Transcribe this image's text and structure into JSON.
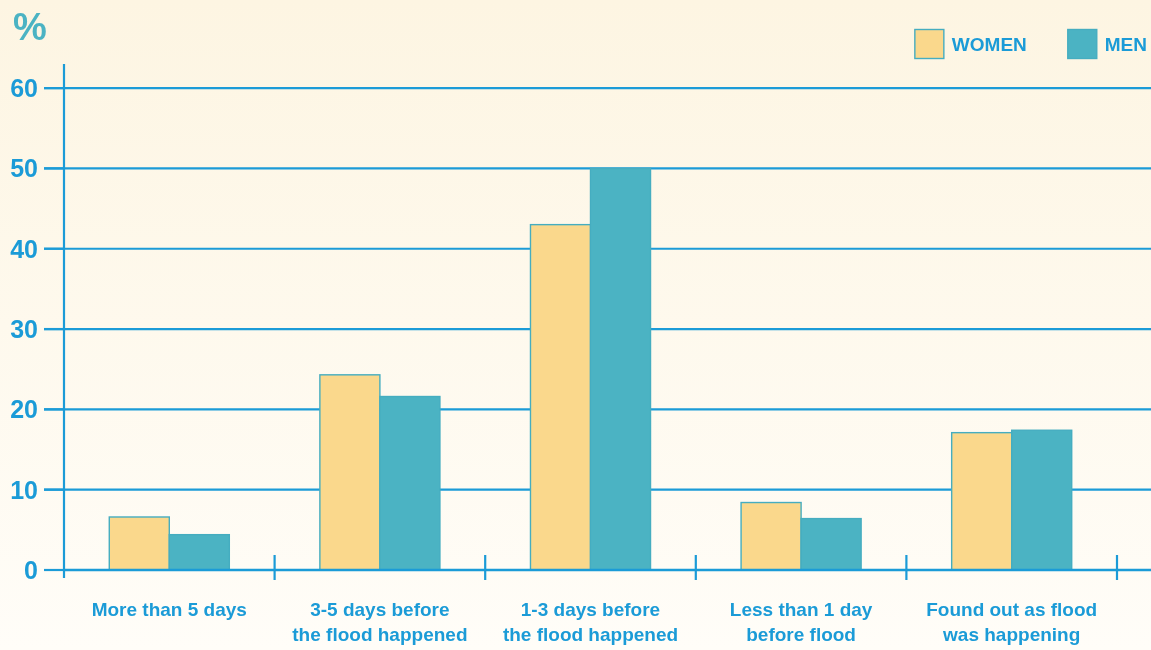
{
  "chart_data": {
    "type": "bar",
    "ylabel": "%",
    "categories": [
      "More than 5 days",
      "3-5 days before\nthe flood happened",
      "1-3 days before\nthe flood happened",
      "Less than 1 day\nbefore flood",
      "Found out as flood\nwas happening"
    ],
    "series": [
      {
        "name": "WOMEN",
        "color": "#fad88c",
        "values": [
          6.6,
          24.3,
          43,
          8.4,
          17.1
        ]
      },
      {
        "name": "MEN",
        "color": "#4bb3c3",
        "values": [
          4.4,
          21.6,
          50,
          6.4,
          17.4
        ]
      }
    ],
    "ylim": [
      0,
      63
    ],
    "yticks": [
      0,
      10,
      20,
      30,
      40,
      50,
      60
    ],
    "grid": "y",
    "legend": "top right"
  }
}
